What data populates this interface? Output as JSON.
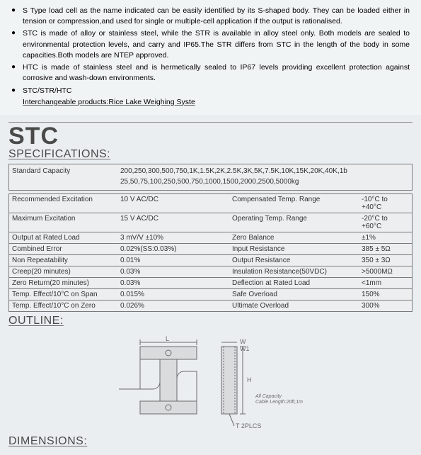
{
  "bullets": [
    "S Type load cell as the name indicated can be easily identified by its S-shaped body. They can be loaded either in tension or compression,and used for single or multiple-cell application if the output is rationalised.",
    "STC is made of alloy or stainless steel, while the STR is available in alloy steel only. Both models are sealed to environmental protection levels, and carry and IP65.The STR differs from STC in the length of the body in some capacities.Both models are NTEP approved.",
    "HTC is made of stainless steel and is hermetically sealed to IP67 levels providing excellent protection against corrosive and wash-down environments.",
    "STC/STR/HTC"
  ],
  "interchangeable": "Interchangeable products:Rice Lake Weighing Syste",
  "product_title": "STC",
  "sections": {
    "specs": "SPECIFICATIONS:",
    "outline": "OUTLINE:",
    "dimensions": "DIMENSIONS:"
  },
  "spec_table": {
    "capacity_label": "Standard Capacity",
    "capacity_value": "200,250,300,500,750,1K,1.5K,2K,2.5K,3K,5K,7.5K,10K,15K,20K,40K,1b\n25,50,75,100,250,500,750,1000,1500,2000,2500,5000kg",
    "rows": [
      [
        "Recommended Excitation",
        "10 V AC/DC",
        "Compensated Temp. Range",
        "-10°C  to +40°C"
      ],
      [
        "Maximum Excitation",
        "15 V AC/DC",
        "Operating Temp. Range",
        "-20°C  to +60°C"
      ],
      [
        "Output at Rated Load",
        "3 mV/V ±10%",
        "Zero Balance",
        "±1%"
      ],
      [
        "Combined Error",
        "0.02%(SS:0.03%)",
        "Input Resistance",
        "385 ± 5Ω"
      ],
      [
        "Non Repeatability",
        "0.01%",
        "Output Resistance",
        "350 ± 3Ω"
      ],
      [
        "Creep(20 minutes)",
        "0.03%",
        "Insulation Resistance(50VDC)",
        ">5000MΩ"
      ],
      [
        "Zero Return(20 minutes)",
        "0.03%",
        "Deflection at Rated Load",
        "<1mm"
      ],
      [
        "Temp. Effect/10°C  on Span",
        "0.015%",
        "Safe Overload",
        "150%"
      ],
      [
        "Temp. Effect/10°C  on Zero",
        "0.026%",
        "Ultimate Overload",
        "300%"
      ]
    ]
  },
  "diagram": {
    "L": "L",
    "W": "W",
    "W1": "W1",
    "H": "H",
    "T": "T  2PLCS",
    "note1": "All Capacity",
    "note2": "Cable Length:20ft,1m"
  }
}
